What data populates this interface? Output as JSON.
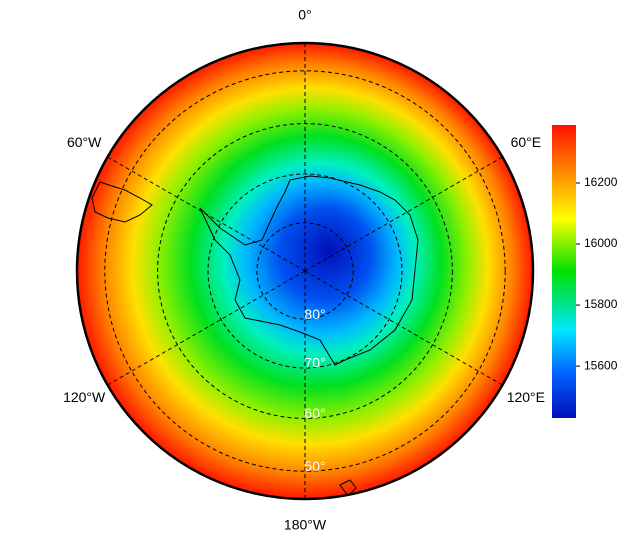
{
  "map": {
    "longitudes": [
      {
        "value": 0,
        "label": "0°"
      },
      {
        "value": 60,
        "label": "60°E"
      },
      {
        "value": 120,
        "label": "120°E"
      },
      {
        "value": 180,
        "label": "180°W"
      },
      {
        "value": -120,
        "label": "120°W"
      },
      {
        "value": -60,
        "label": "60°W"
      }
    ],
    "latitudes": [
      {
        "value": 80,
        "label": "80°"
      },
      {
        "value": 70,
        "label": "70°"
      },
      {
        "value": 60,
        "label": "60°"
      },
      {
        "value": 50,
        "label": "50°"
      }
    ],
    "colorbar": {
      "lim": [
        15430,
        16390
      ],
      "ticks": [
        15600,
        15800,
        16000,
        16200
      ]
    }
  }
}
